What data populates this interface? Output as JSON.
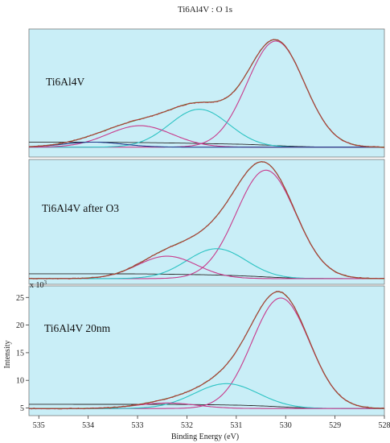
{
  "chart_data": {
    "type": "line",
    "title": "Ti6Al4V : O 1s",
    "xlabel": "Binding Energy (eV)",
    "ylabel": "Intensity",
    "y_multiplier": "x 10",
    "y_multiplier_exp": "3",
    "xlim": [
      535.2,
      528.0
    ],
    "x_ticks": [
      535,
      534,
      533,
      532,
      531,
      530,
      529,
      528
    ],
    "y_ticks": [
      5,
      10,
      15,
      20,
      25
    ],
    "ylim_bottom_panel": [
      4.2,
      26.5
    ],
    "background_color": "#c9eef7",
    "panels": [
      {
        "label": "Ti6Al4V",
        "baseline": 0.04,
        "peaks": [
          {
            "name": "main",
            "center": 530.2,
            "height": 0.84,
            "sigma": 0.58,
            "color": "#c83a8c"
          },
          {
            "name": "mid",
            "center": 531.75,
            "height": 0.3,
            "sigma": 0.6,
            "color": "#2cc3c3"
          },
          {
            "name": "high",
            "center": 532.95,
            "height": 0.17,
            "sigma": 0.65,
            "color": "#c83a8c"
          },
          {
            "name": "far",
            "center": 533.9,
            "height": 0.04,
            "sigma": 0.6,
            "color": "#1f3a8a"
          }
        ]
      },
      {
        "label": "Ti6Al4V after O3",
        "baseline": 0.02,
        "peaks": [
          {
            "name": "main",
            "center": 530.4,
            "height": 0.87,
            "sigma": 0.6,
            "color": "#c83a8c"
          },
          {
            "name": "mid",
            "center": 531.4,
            "height": 0.24,
            "sigma": 0.6,
            "color": "#2cc3c3"
          },
          {
            "name": "high",
            "center": 532.4,
            "height": 0.18,
            "sigma": 0.6,
            "color": "#c83a8c"
          }
        ]
      },
      {
        "label": "Ti6Al4V 20nm",
        "baseline": 4.9,
        "peaks": [
          {
            "name": "main",
            "center": 530.1,
            "height": 20.0,
            "sigma": 0.58,
            "color": "#c83a8c"
          },
          {
            "name": "mid",
            "center": 531.2,
            "height": 4.5,
            "sigma": 0.65,
            "color": "#2cc3c3"
          },
          {
            "name": "high",
            "center": 532.4,
            "height": 1.0,
            "sigma": 0.6,
            "color": "#c83a8c"
          }
        ]
      }
    ],
    "envelope_color": "#5a7a28",
    "raw_color": "#b5393a",
    "background_line_color": "#2a2a2a",
    "grid": false
  }
}
